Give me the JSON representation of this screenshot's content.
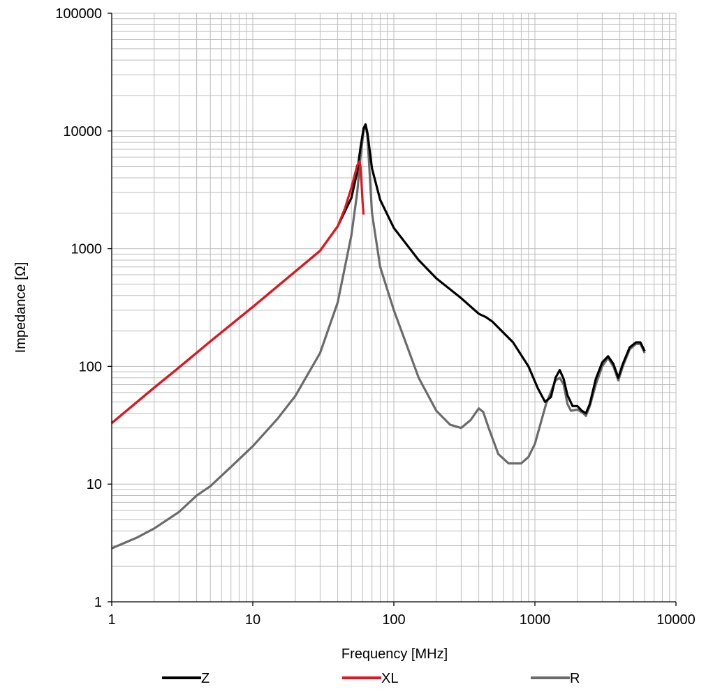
{
  "chart_data": {
    "type": "line",
    "title": "",
    "xlabel": "Frequency [MHz]",
    "ylabel": "Impedance [Ω]",
    "x_scale": "log",
    "y_scale": "log",
    "xlim": [
      1,
      10000
    ],
    "ylim": [
      1,
      100000
    ],
    "x_ticks": [
      "1",
      "10",
      "100",
      "1000",
      "10000"
    ],
    "y_ticks": [
      "1",
      "10",
      "100",
      "1000",
      "10000",
      "100000"
    ],
    "grid": true,
    "legend_position": "bottom",
    "series": [
      {
        "name": "Z",
        "color": "#000000",
        "points": [
          [
            1,
            33
          ],
          [
            2,
            66
          ],
          [
            3,
            98
          ],
          [
            5,
            163
          ],
          [
            10,
            320
          ],
          [
            20,
            640
          ],
          [
            30,
            960
          ],
          [
            40,
            1550
          ],
          [
            50,
            2700
          ],
          [
            55,
            4500
          ],
          [
            58,
            7200
          ],
          [
            61,
            10500
          ],
          [
            63,
            11400
          ],
          [
            65,
            9600
          ],
          [
            70,
            4800
          ],
          [
            80,
            2600
          ],
          [
            100,
            1500
          ],
          [
            150,
            800
          ],
          [
            200,
            560
          ],
          [
            300,
            380
          ],
          [
            400,
            280
          ],
          [
            450,
            262
          ],
          [
            500,
            240
          ],
          [
            700,
            160
          ],
          [
            900,
            100
          ],
          [
            1050,
            65
          ],
          [
            1180,
            50
          ],
          [
            1300,
            55
          ],
          [
            1400,
            80
          ],
          [
            1500,
            93
          ],
          [
            1600,
            78
          ],
          [
            1700,
            57
          ],
          [
            1850,
            46
          ],
          [
            2000,
            46
          ],
          [
            2150,
            42
          ],
          [
            2300,
            40
          ],
          [
            2450,
            48
          ],
          [
            2700,
            78
          ],
          [
            3000,
            108
          ],
          [
            3300,
            122
          ],
          [
            3600,
            105
          ],
          [
            3900,
            80
          ],
          [
            4200,
            105
          ],
          [
            4700,
            145
          ],
          [
            5200,
            160
          ],
          [
            5600,
            160
          ],
          [
            6000,
            135
          ]
        ]
      },
      {
        "name": "XL",
        "color": "#e8141b",
        "points": [
          [
            1,
            33
          ],
          [
            2,
            66
          ],
          [
            3,
            98
          ],
          [
            5,
            163
          ],
          [
            10,
            320
          ],
          [
            20,
            640
          ],
          [
            30,
            960
          ],
          [
            40,
            1550
          ],
          [
            45,
            2200
          ],
          [
            50,
            3300
          ],
          [
            55,
            5100
          ],
          [
            57,
            5500
          ],
          [
            58,
            5000
          ],
          [
            59,
            3600
          ],
          [
            60,
            2500
          ],
          [
            61,
            1950
          ]
        ]
      },
      {
        "name": "R",
        "color": "#6b6b6b",
        "points": [
          [
            1,
            2.85
          ],
          [
            1.5,
            3.5
          ],
          [
            2,
            4.2
          ],
          [
            3,
            5.8
          ],
          [
            4,
            8
          ],
          [
            5,
            9.6
          ],
          [
            7,
            14
          ],
          [
            10,
            21
          ],
          [
            15,
            36
          ],
          [
            20,
            56
          ],
          [
            30,
            130
          ],
          [
            40,
            350
          ],
          [
            50,
            1300
          ],
          [
            55,
            3000
          ],
          [
            58,
            6000
          ],
          [
            61,
            10000
          ],
          [
            63,
            11200
          ],
          [
            65,
            9000
          ],
          [
            70,
            2000
          ],
          [
            80,
            700
          ],
          [
            100,
            300
          ],
          [
            150,
            80
          ],
          [
            200,
            42
          ],
          [
            250,
            32
          ],
          [
            300,
            30
          ],
          [
            350,
            35
          ],
          [
            400,
            44
          ],
          [
            430,
            41
          ],
          [
            470,
            30
          ],
          [
            550,
            18
          ],
          [
            650,
            15
          ],
          [
            800,
            15
          ],
          [
            900,
            17
          ],
          [
            1000,
            22
          ],
          [
            1200,
            48
          ],
          [
            1400,
            76
          ],
          [
            1500,
            80
          ],
          [
            1600,
            70
          ],
          [
            1700,
            48
          ],
          [
            1800,
            42
          ],
          [
            2000,
            43
          ],
          [
            2200,
            40
          ],
          [
            2300,
            38
          ],
          [
            2450,
            46
          ],
          [
            2700,
            70
          ],
          [
            3000,
            100
          ],
          [
            3300,
            118
          ],
          [
            3600,
            100
          ],
          [
            3900,
            76
          ],
          [
            4200,
            100
          ],
          [
            4700,
            140
          ],
          [
            5200,
            155
          ],
          [
            5600,
            155
          ],
          [
            6000,
            130
          ]
        ]
      }
    ]
  }
}
